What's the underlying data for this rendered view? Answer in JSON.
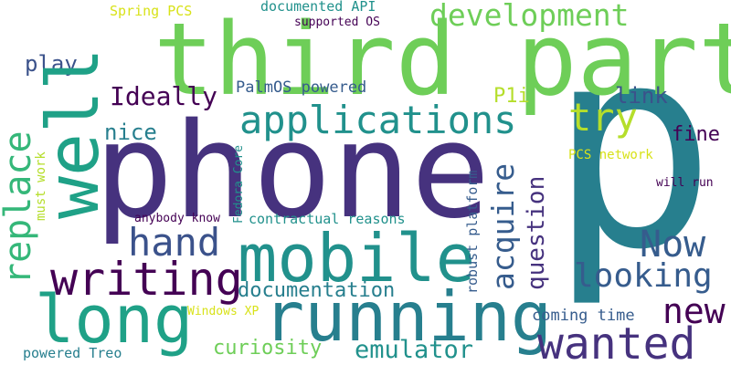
{
  "palette": {
    "purple": "#46327e",
    "darkpurple": "#440154",
    "indigo": "#3b528b",
    "blue": "#365c8d",
    "teal": "#277f8e",
    "teal2": "#21918c",
    "green": "#1fa187",
    "green2": "#35b779",
    "lime": "#6ece58",
    "yellowgreen": "#b5de2b",
    "yellow": "#d8e219"
  },
  "words": [
    {
      "id": "p",
      "text": "p",
      "color": "#277f8e"
    },
    {
      "id": "phone",
      "text": "phone",
      "color": "#46327e"
    },
    {
      "id": "third-party",
      "text": "third party",
      "color": "#6ece58"
    },
    {
      "id": "well",
      "text": "well",
      "color": "#1fa187"
    },
    {
      "id": "mobile",
      "text": "mobile",
      "color": "#21918c"
    },
    {
      "id": "running",
      "text": "running",
      "color": "#277f8e"
    },
    {
      "id": "long",
      "text": "long",
      "color": "#1fa187"
    },
    {
      "id": "applications",
      "text": "applications",
      "color": "#21918c"
    },
    {
      "id": "writing",
      "text": "writing",
      "color": "#440154"
    },
    {
      "id": "wanted",
      "text": "wanted",
      "color": "#46327e"
    },
    {
      "id": "replace",
      "text": "replace",
      "color": "#35b779"
    },
    {
      "id": "hand",
      "text": "hand",
      "color": "#3b528b"
    },
    {
      "id": "development",
      "text": "development",
      "color": "#6ece58"
    },
    {
      "id": "try",
      "text": "try",
      "color": "#b5de2b"
    },
    {
      "id": "now",
      "text": "Now",
      "color": "#365c8d"
    },
    {
      "id": "acquire",
      "text": "acquire",
      "color": "#365c8d"
    },
    {
      "id": "new",
      "text": "new",
      "color": "#440154"
    },
    {
      "id": "looking",
      "text": "looking",
      "color": "#365c8d"
    },
    {
      "id": "emulator",
      "text": "emulator",
      "color": "#21918c"
    },
    {
      "id": "question",
      "text": "question",
      "color": "#46327e"
    },
    {
      "id": "ideally",
      "text": "Ideally",
      "color": "#440154"
    },
    {
      "id": "documentation",
      "text": "documentation",
      "color": "#277f8e"
    },
    {
      "id": "curiosity",
      "text": "curiosity",
      "color": "#6ece58"
    },
    {
      "id": "link",
      "text": "link",
      "color": "#3b528b"
    },
    {
      "id": "play",
      "text": "play",
      "color": "#3b528b"
    },
    {
      "id": "nice",
      "text": "nice",
      "color": "#277f8e"
    },
    {
      "id": "fine",
      "text": "fine",
      "color": "#440154"
    },
    {
      "id": "p1i",
      "text": "P1i",
      "color": "#b5de2b"
    },
    {
      "id": "coming-time",
      "text": "coming time",
      "color": "#365c8d"
    },
    {
      "id": "palmos-powered",
      "text": "PalmOS powered",
      "color": "#365c8d"
    },
    {
      "id": "contractual-reasons",
      "text": "contractual reasons",
      "color": "#21918c"
    },
    {
      "id": "spring-pcs",
      "text": "Spring PCS",
      "color": "#d8e219"
    },
    {
      "id": "documented-api",
      "text": "documented API",
      "color": "#21918c"
    },
    {
      "id": "supported-os",
      "text": "supported OS",
      "color": "#440154"
    },
    {
      "id": "pcs-network",
      "text": "PCS network",
      "color": "#d8e219"
    },
    {
      "id": "will-run",
      "text": "will run",
      "color": "#440154"
    },
    {
      "id": "anybody-know",
      "text": "anybody know",
      "color": "#440154"
    },
    {
      "id": "windows-xp",
      "text": "Windows XP",
      "color": "#d8e219"
    },
    {
      "id": "powered-treo",
      "text": "powered Treo",
      "color": "#277f8e"
    },
    {
      "id": "fedora-core",
      "text": "Fedora Core",
      "color": "#21918c"
    },
    {
      "id": "robust-platform",
      "text": "robust platform",
      "color": "#365c8d"
    },
    {
      "id": "must-work",
      "text": "must work",
      "color": "#b5de2b"
    }
  ]
}
